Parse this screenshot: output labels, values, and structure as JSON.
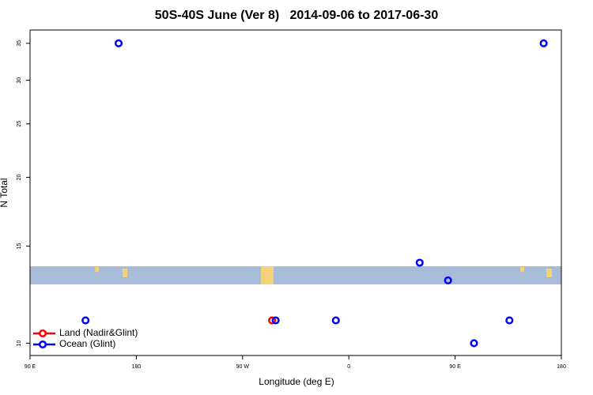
{
  "chart_data": {
    "type": "scatter",
    "title": "50S-40S June (Ver 8)   2014-09-06 to 2017-06-30",
    "x_label": "Longitude (deg E)",
    "y_label": "N Total",
    "xlim": [
      90,
      540
    ],
    "xticks": [
      {
        "value": 90,
        "label": "90 E"
      },
      180,
      {
        "value": 270,
        "label": "90 W"
      },
      {
        "value": 360,
        "label": "0"
      },
      {
        "value": 450,
        "label": "90 E"
      },
      {
        "value": 540,
        "label": "180"
      }
    ],
    "ylim": [
      9.5,
      37
    ],
    "yticks": [
      10,
      15,
      20,
      25,
      30,
      35
    ],
    "log_y": true,
    "legend": "bottom-left",
    "series": [
      {
        "name": "Land (Nadir&Glint)",
        "color": "#ff0000",
        "x": [
          295
        ],
        "values": [
          11
        ]
      },
      {
        "name": "Ocean (Glint)",
        "color": "#0000ff",
        "x": [
          165,
          137,
          298,
          349,
          420,
          444,
          466,
          496,
          525
        ],
        "values": [
          35,
          11,
          11,
          11,
          14,
          13,
          10,
          11,
          35
        ]
      }
    ]
  }
}
